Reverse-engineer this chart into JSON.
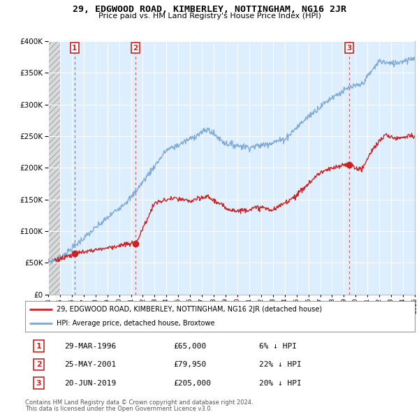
{
  "title": "29, EDGWOOD ROAD, KIMBERLEY, NOTTINGHAM, NG16 2JR",
  "subtitle": "Price paid vs. HM Land Registry's House Price Index (HPI)",
  "legend_label_red": "29, EDGWOOD ROAD, KIMBERLEY, NOTTINGHAM, NG16 2JR (detached house)",
  "legend_label_blue": "HPI: Average price, detached house, Broxtowe",
  "footer1": "Contains HM Land Registry data © Crown copyright and database right 2024.",
  "footer2": "This data is licensed under the Open Government Licence v3.0.",
  "transactions": [
    {
      "num": "1",
      "date": "29-MAR-1996",
      "price": "£65,000",
      "pct": "6% ↓ HPI",
      "year": 1996.23,
      "price_val": 65000
    },
    {
      "num": "2",
      "date": "25-MAY-2001",
      "price": "£79,950",
      "pct": "22% ↓ HPI",
      "year": 2001.39,
      "price_val": 79950
    },
    {
      "num": "3",
      "date": "20-JUN-2019",
      "price": "£205,000",
      "pct": "20% ↓ HPI",
      "year": 2019.46,
      "price_val": 205000
    }
  ],
  "ylim": [
    0,
    400000
  ],
  "yticks": [
    0,
    50000,
    100000,
    150000,
    200000,
    250000,
    300000,
    350000,
    400000
  ],
  "hpi_color": "#7aa8d4",
  "price_color": "#cc2222",
  "dashed_color": "#cc4444",
  "bg_plot": "#ddeeff",
  "hatch_color": "#cccccc",
  "grid_color": "#ffffff"
}
